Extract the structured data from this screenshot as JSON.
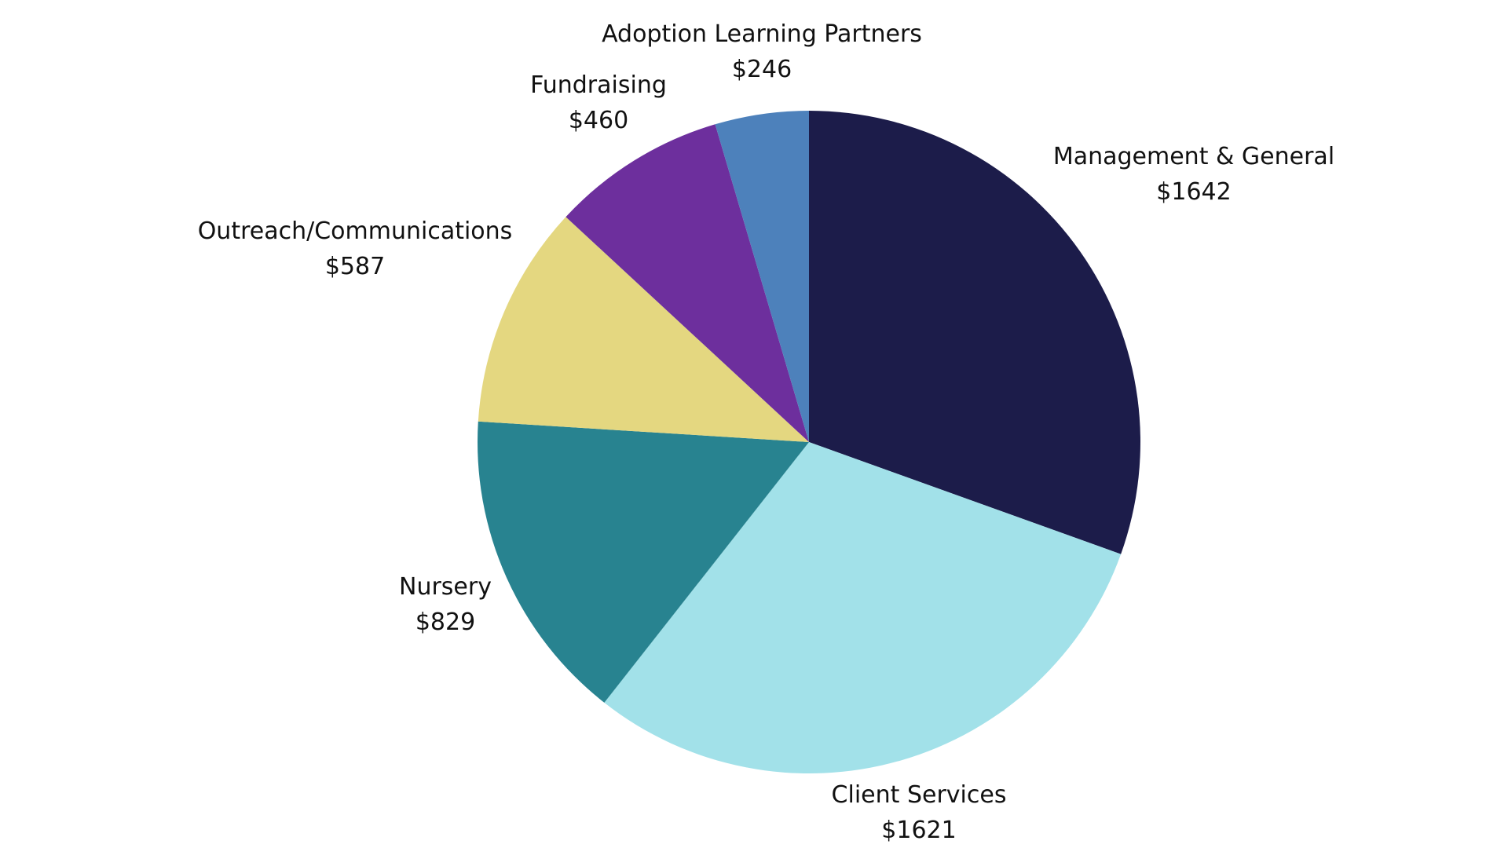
{
  "chart_data": {
    "type": "pie",
    "start_angle_deg": 0,
    "direction": "clockwise",
    "legend": "none",
    "slices": [
      {
        "label": "Management & General",
        "value": 1642,
        "value_label": "$1642",
        "color": "#1c1c4a"
      },
      {
        "label": "Client Services",
        "value": 1621,
        "value_label": "$1621",
        "color": "#a2e1e9"
      },
      {
        "label": "Nursery",
        "value": 829,
        "value_label": "$829",
        "color": "#288390"
      },
      {
        "label": "Outreach/Communications",
        "value": 587,
        "value_label": "$587",
        "color": "#e4d780"
      },
      {
        "label": "Fundraising",
        "value": 460,
        "value_label": "$460",
        "color": "#6d2f9d"
      },
      {
        "label": "Adoption Learning Partners",
        "value": 246,
        "value_label": "$246",
        "color": "#4d81bb"
      }
    ]
  }
}
